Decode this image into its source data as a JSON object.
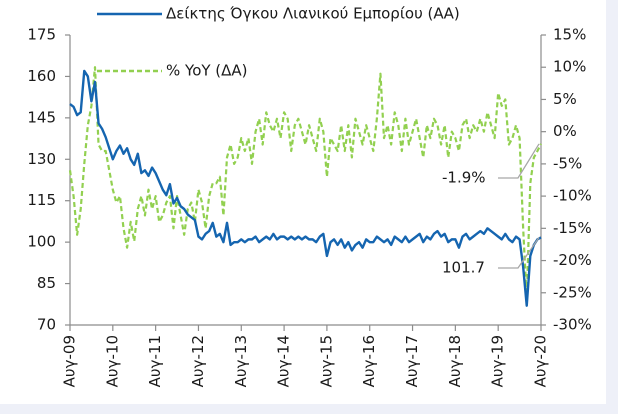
{
  "chart_data": {
    "type": "line",
    "categories": [
      "Αυγ-09",
      null,
      null,
      null,
      null,
      null,
      null,
      null,
      null,
      null,
      null,
      null,
      "Αυγ-10",
      null,
      null,
      null,
      null,
      null,
      null,
      null,
      null,
      null,
      null,
      null,
      "Αυγ-11",
      null,
      null,
      null,
      null,
      null,
      null,
      null,
      null,
      null,
      null,
      null,
      "Αυγ-12",
      null,
      null,
      null,
      null,
      null,
      null,
      null,
      null,
      null,
      null,
      null,
      "Αυγ-13",
      null,
      null,
      null,
      null,
      null,
      null,
      null,
      null,
      null,
      null,
      null,
      "Αυγ-14",
      null,
      null,
      null,
      null,
      null,
      null,
      null,
      null,
      null,
      null,
      null,
      "Αυγ-15",
      null,
      null,
      null,
      null,
      null,
      null,
      null,
      null,
      null,
      null,
      null,
      "Αυγ-16",
      null,
      null,
      null,
      null,
      null,
      null,
      null,
      null,
      null,
      null,
      null,
      "Αυγ-17",
      null,
      null,
      null,
      null,
      null,
      null,
      null,
      null,
      null,
      null,
      null,
      "Αυγ-18",
      null,
      null,
      null,
      null,
      null,
      null,
      null,
      null,
      null,
      null,
      null,
      "Αυγ-19",
      null,
      null,
      null,
      null,
      null,
      null,
      null,
      null,
      null,
      null,
      null,
      "Αυγ-20"
    ],
    "series": [
      {
        "name": "Δείκτης Όγκου Λιανικού Εμπορίου (ΑΑ)",
        "color": "#1565b0",
        "dash": false,
        "values": [
          150,
          149,
          146,
          147,
          162,
          160,
          151,
          158,
          143,
          141,
          138,
          134,
          130,
          133,
          135,
          132,
          134,
          130,
          128,
          132,
          125,
          126,
          124,
          127,
          125,
          122,
          119,
          117,
          121,
          114,
          116,
          113,
          112,
          110,
          109,
          108,
          102,
          101,
          103,
          104,
          107,
          102,
          103,
          100,
          107,
          99,
          100,
          100,
          101,
          100,
          101,
          101,
          102,
          100,
          101,
          102,
          101,
          103,
          101,
          102,
          102,
          101,
          102,
          101,
          102,
          101,
          102,
          101,
          101,
          100,
          102,
          103,
          95,
          100,
          101,
          99,
          101,
          98,
          100,
          97,
          99,
          100,
          98,
          101,
          100,
          100,
          102,
          101,
          100,
          101,
          99,
          102,
          101,
          100,
          102,
          100,
          101,
          102,
          103,
          100,
          102,
          101,
          103,
          104,
          102,
          103,
          100,
          101,
          101,
          98,
          102,
          103,
          101,
          102,
          103,
          104,
          103,
          105,
          104,
          103,
          102,
          101,
          103,
          101,
          100,
          102,
          101,
          91,
          77,
          95,
          99,
          101,
          101.7
        ]
      },
      {
        "name": "% YoY (ΔΑ)",
        "color": "#92d050",
        "dash": true,
        "axis": "y2",
        "values": [
          -6,
          -10,
          -16,
          -12,
          -5,
          1,
          4,
          10,
          -2,
          -3,
          -3,
          -6,
          -9,
          -11,
          -10,
          -15,
          -18,
          -14,
          -17,
          -12,
          -10,
          -13,
          -9,
          -12,
          -10,
          -14,
          -13,
          -11,
          -10,
          -15,
          -10,
          -13,
          -16,
          -12,
          -11,
          -14,
          -9,
          -11,
          -15,
          -10,
          -8,
          -8,
          -7,
          -13,
          -4,
          -2,
          -5,
          -4,
          -1,
          -3,
          -1,
          -5,
          0,
          2,
          -2,
          3,
          1,
          0,
          2,
          -1,
          3,
          2,
          -3,
          1,
          2,
          0,
          -2,
          1,
          -1,
          -3,
          2,
          0,
          -7,
          -1,
          -2,
          -3,
          1,
          -3,
          1,
          -4,
          2,
          0,
          -2,
          1,
          -1,
          -3,
          2,
          9,
          -1,
          1,
          -2,
          3,
          1,
          -3,
          2,
          -2,
          0,
          2,
          -1,
          -4,
          1,
          -1,
          2,
          1,
          -2,
          1,
          -4,
          0,
          -1,
          -3,
          1,
          2,
          -1,
          1,
          0,
          2,
          0,
          3,
          1,
          -1,
          6,
          4,
          5,
          -2,
          -1,
          1,
          -1,
          -15,
          -26,
          -8,
          -4,
          -3,
          -1.9
        ]
      }
    ],
    "annotations": [
      "101.7",
      "-1.9%"
    ],
    "ylim": [
      70,
      175
    ],
    "yticks": [
      70,
      85,
      100,
      115,
      130,
      145,
      160,
      175
    ],
    "y2lim": [
      -30,
      15
    ],
    "y2ticks": [
      {
        "value": -30,
        "label": "-30%"
      },
      {
        "value": -25,
        "label": "-25%"
      },
      {
        "value": -20,
        "label": "-20%"
      },
      {
        "value": -15,
        "label": "-15%"
      },
      {
        "value": -10,
        "label": "-10%"
      },
      {
        "value": -5,
        "label": "-5%"
      },
      {
        "value": 0,
        "label": "0%"
      },
      {
        "value": 5,
        "label": "5%"
      },
      {
        "value": 10,
        "label": "10%"
      },
      {
        "value": 15,
        "label": "15%"
      }
    ],
    "grid": false
  }
}
